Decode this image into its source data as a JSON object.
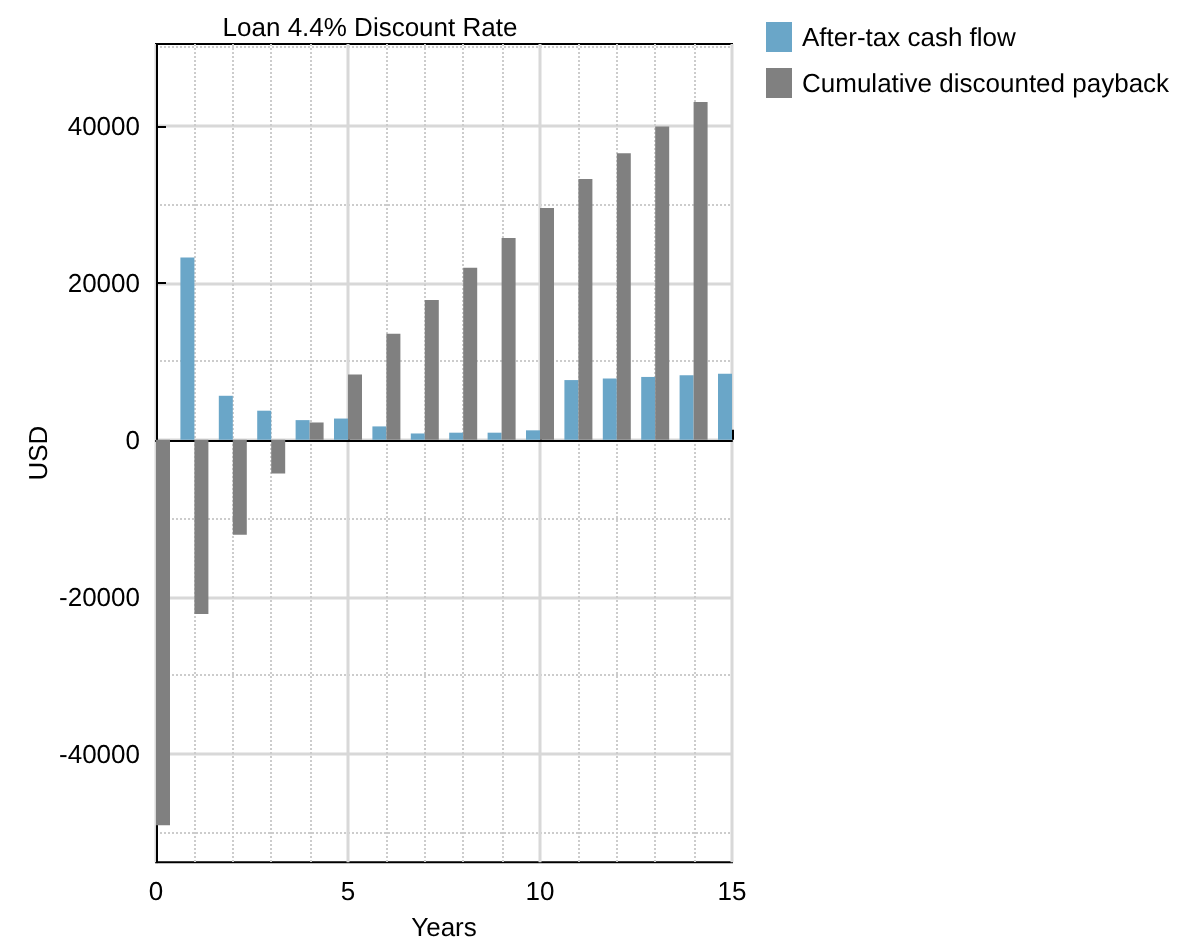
{
  "chart_data": {
    "type": "bar",
    "title": "Loan 4.4% Discount Rate",
    "xlabel": "Years",
    "ylabel": "USD",
    "x": [
      0,
      1,
      2,
      3,
      4,
      5,
      6,
      7,
      8,
      9,
      10,
      11,
      12,
      13,
      14,
      15
    ],
    "series": [
      {
        "name": "After-tax cash flow",
        "color": "#6aa6c8",
        "values": [
          null,
          23200,
          5600,
          3700,
          2500,
          2700,
          1700,
          800,
          900,
          900,
          1200,
          7600,
          7800,
          8000,
          8200,
          8400
        ]
      },
      {
        "name": "Cumulative discounted payback",
        "color": "#808080",
        "values": [
          -49100,
          -22200,
          -12100,
          -4300,
          2200,
          8300,
          13500,
          17800,
          21900,
          25700,
          29500,
          33200,
          36500,
          39900,
          43000,
          null
        ]
      }
    ],
    "xlim": [
      0,
      15
    ],
    "xticks": [
      0,
      5,
      10,
      15
    ],
    "ylim": [
      -53800,
      50400
    ],
    "yticks": [
      -40000,
      -20000,
      0,
      20000,
      40000
    ],
    "grid": true,
    "legend": "top right"
  }
}
